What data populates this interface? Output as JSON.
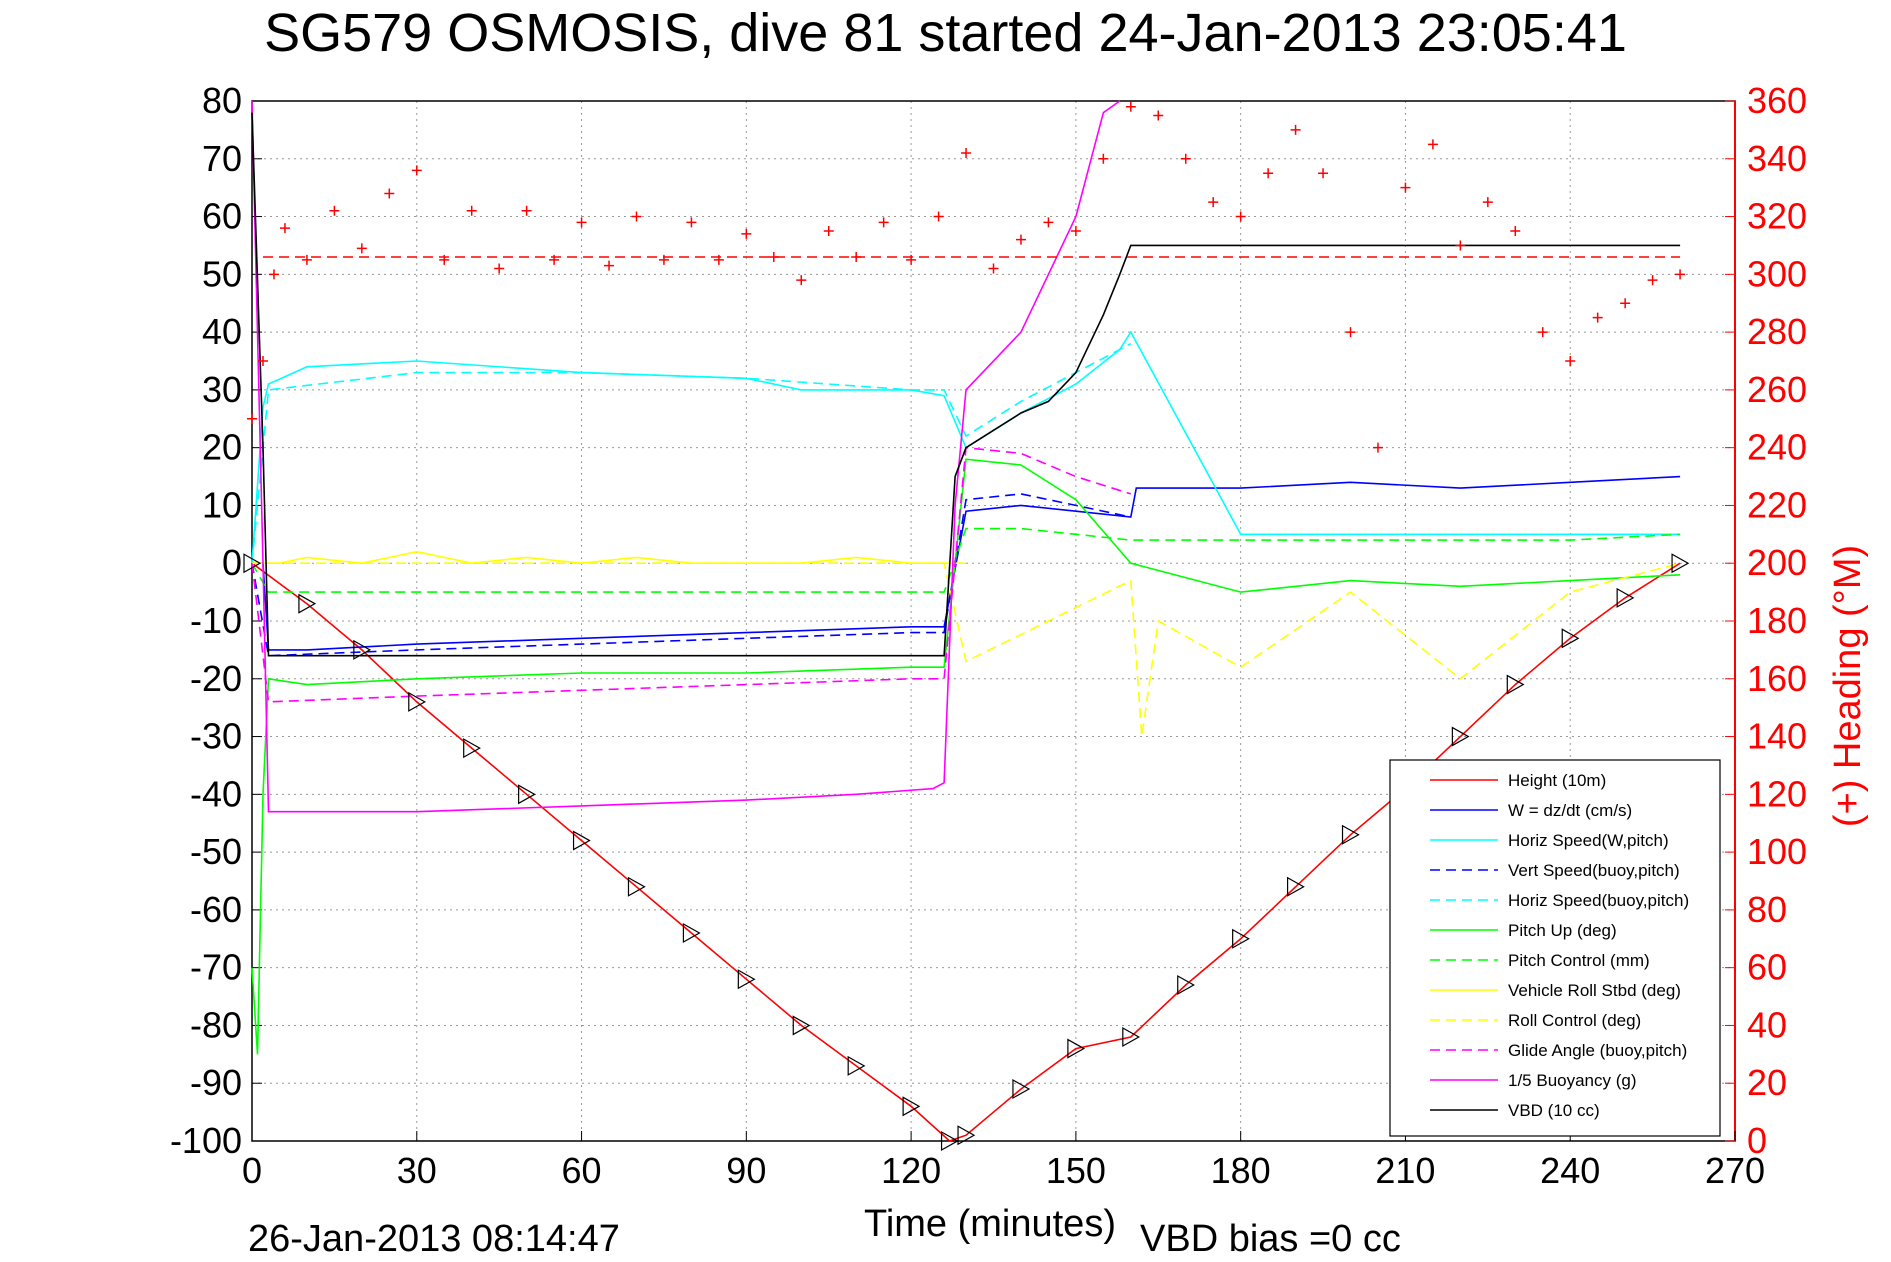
{
  "title": "SG579 OSMOSIS, dive 81 started 24-Jan-2013 23:05:41",
  "footer": {
    "date": "26-Jan-2013 08:14:47",
    "vbd_bias": "VBD bias =0 cc"
  },
  "chart_data": {
    "type": "line",
    "xlabel": "Time (minutes)",
    "ylabel_right": "(+) Heading (°M)",
    "xlim": [
      0,
      270
    ],
    "ylim": [
      -100,
      80
    ],
    "ylim_right": [
      0,
      360
    ],
    "xticks": [
      0,
      30,
      60,
      90,
      120,
      150,
      180,
      210,
      240,
      270
    ],
    "yticks": [
      -100,
      -90,
      -80,
      -70,
      -60,
      -50,
      -40,
      -30,
      -20,
      -10,
      0,
      10,
      20,
      30,
      40,
      50,
      60,
      70,
      80
    ],
    "yticks_right": [
      0,
      20,
      40,
      60,
      80,
      100,
      120,
      140,
      160,
      180,
      200,
      220,
      240,
      260,
      280,
      300,
      320,
      340,
      360
    ],
    "grid": true,
    "legend_position": "bottom-right",
    "colors": {
      "axis_right": "#ff0000",
      "heading": "#ff0000",
      "heading_mean": "#ff0000"
    },
    "series": [
      {
        "name": "Height (10m)",
        "color": "#ff0000",
        "style": "solid",
        "x": [
          0,
          10,
          20,
          30,
          40,
          50,
          60,
          70,
          80,
          90,
          100,
          110,
          120,
          127,
          130,
          140,
          150,
          160,
          170,
          180,
          190,
          200,
          210,
          220,
          230,
          240,
          250,
          260
        ],
        "y": [
          0,
          -7,
          -15,
          -24,
          -32,
          -40,
          -48,
          -56,
          -64,
          -72,
          -80,
          -87,
          -94,
          -100,
          -99,
          -91,
          -84,
          -82,
          -73,
          -65,
          -56,
          -47,
          -39,
          -30,
          -21,
          -13,
          -6,
          0
        ]
      },
      {
        "name": "W = dz/dt (cm/s)",
        "color": "#0000ff",
        "style": "solid",
        "x": [
          0,
          2,
          3,
          10,
          30,
          60,
          90,
          120,
          126,
          130,
          140,
          150,
          160,
          161,
          180,
          200,
          220,
          240,
          260
        ],
        "y": [
          0,
          0,
          -15,
          -15,
          -14,
          -13,
          -12,
          -11,
          -11,
          9,
          10,
          9,
          8,
          13,
          13,
          14,
          13,
          14,
          15
        ]
      },
      {
        "name": "Horiz Speed(W,pitch)",
        "color": "#00ffff",
        "style": "solid",
        "x": [
          0,
          2,
          3,
          10,
          30,
          60,
          90,
          100,
          120,
          126,
          130,
          140,
          150,
          158,
          160,
          180,
          200,
          220,
          240,
          260
        ],
        "y": [
          0,
          27,
          31,
          34,
          35,
          33,
          32,
          30,
          30,
          29,
          20,
          26,
          31,
          37,
          40,
          5,
          5,
          5,
          5,
          5
        ]
      },
      {
        "name": "Vert Speed(buoy,pitch)",
        "color": "#0000ff",
        "style": "dashed",
        "x": [
          0,
          3,
          30,
          60,
          90,
          120,
          126,
          130,
          140,
          150,
          160
        ],
        "y": [
          0,
          -16,
          -15,
          -14,
          -13,
          -12,
          -12,
          11,
          12,
          10,
          8
        ]
      },
      {
        "name": "Horiz Speed(buoy,pitch)",
        "color": "#00ffff",
        "style": "dashed",
        "x": [
          0,
          3,
          30,
          60,
          90,
          120,
          126,
          130,
          140,
          150,
          160
        ],
        "y": [
          0,
          30,
          33,
          33,
          32,
          30,
          30,
          22,
          28,
          33,
          38
        ]
      },
      {
        "name": "Pitch Up (deg)",
        "color": "#00ff00",
        "style": "solid",
        "x": [
          0,
          1,
          2,
          3,
          10,
          30,
          60,
          90,
          120,
          126,
          130,
          140,
          150,
          160,
          180,
          200,
          220,
          240,
          260
        ],
        "y": [
          -70,
          -85,
          -40,
          -20,
          -21,
          -20,
          -19,
          -19,
          -18,
          -18,
          18,
          17,
          11,
          0,
          -5,
          -3,
          -4,
          -3,
          -2
        ]
      },
      {
        "name": "Pitch Control (mm)",
        "color": "#00ff00",
        "style": "dashed",
        "x": [
          0,
          3,
          30,
          60,
          90,
          120,
          126,
          130,
          140,
          150,
          160,
          200,
          240,
          260
        ],
        "y": [
          0,
          -5,
          -5,
          -5,
          -5,
          -5,
          -5,
          6,
          6,
          5,
          4,
          4,
          4,
          5
        ]
      },
      {
        "name": "Vehicle Roll Stbd (deg)",
        "color": "#ffff00",
        "style": "solid",
        "x": [
          0,
          5,
          10,
          20,
          30,
          40,
          50,
          60,
          70,
          80,
          90,
          100,
          110,
          120,
          126,
          130
        ],
        "y": [
          0,
          0,
          1,
          0,
          2,
          0,
          1,
          0,
          1,
          0,
          0,
          0,
          1,
          0,
          0,
          0
        ]
      },
      {
        "name": "Roll Control (deg)",
        "color": "#ffff00",
        "style": "dashed",
        "x": [
          0,
          30,
          60,
          90,
          126,
          130,
          160,
          162,
          165,
          180,
          200,
          220,
          240,
          260
        ],
        "y": [
          0,
          0,
          0,
          0,
          0,
          -17,
          -3,
          -30,
          -10,
          -18,
          -5,
          -20,
          -5,
          0
        ]
      },
      {
        "name": "Glide Angle (buoy,pitch)",
        "color": "#ff00ff",
        "style": "dashed",
        "x": [
          0,
          3,
          30,
          60,
          90,
          120,
          126,
          130,
          140,
          150,
          160
        ],
        "y": [
          0,
          -24,
          -23,
          -22,
          -21,
          -20,
          -20,
          20,
          19,
          15,
          12
        ]
      },
      {
        "name": "1/5 Buoyancy (g)",
        "color": "#ff00ff",
        "style": "solid",
        "x": [
          0,
          2,
          3,
          30,
          60,
          90,
          110,
          124,
          126,
          128,
          130,
          140,
          150,
          155,
          158
        ],
        "y": [
          80,
          0,
          -43,
          -43,
          -42,
          -41,
          -40,
          -39,
          -38,
          10,
          30,
          40,
          60,
          78,
          80
        ]
      },
      {
        "name": "VBD (10 cc)",
        "color": "#000000",
        "style": "solid",
        "x": [
          0,
          2,
          3,
          30,
          60,
          90,
          120,
          126,
          128,
          130,
          135,
          140,
          145,
          150,
          155,
          158,
          160,
          200,
          240,
          260
        ],
        "y": [
          78,
          20,
          -16,
          -16,
          -16,
          -16,
          -16,
          -16,
          15,
          20,
          23,
          26,
          28,
          33,
          43,
          50,
          55,
          55,
          55,
          55
        ]
      }
    ],
    "heading": {
      "name": "(+) Heading (°M)",
      "mean": 306,
      "x": [
        0,
        2,
        4,
        6,
        10,
        15,
        20,
        25,
        30,
        35,
        40,
        45,
        50,
        55,
        60,
        65,
        70,
        75,
        80,
        85,
        90,
        95,
        100,
        105,
        110,
        115,
        120,
        125,
        130,
        135,
        140,
        145,
        150,
        155,
        160,
        165,
        170,
        175,
        180,
        185,
        190,
        195,
        200,
        205,
        210,
        215,
        220,
        225,
        230,
        235,
        240,
        245,
        250,
        255,
        260
      ],
      "y": [
        250,
        270,
        300,
        316,
        305,
        322,
        309,
        328,
        336,
        305,
        322,
        302,
        322,
        305,
        318,
        303,
        320,
        305,
        318,
        305,
        314,
        306,
        298,
        315,
        306,
        318,
        305,
        320,
        342,
        302,
        312,
        318,
        315,
        340,
        358,
        355,
        340,
        325,
        320,
        335,
        350,
        335,
        280,
        240,
        330,
        345,
        310,
        325,
        315,
        280,
        270,
        285,
        290,
        298,
        300
      ]
    }
  }
}
